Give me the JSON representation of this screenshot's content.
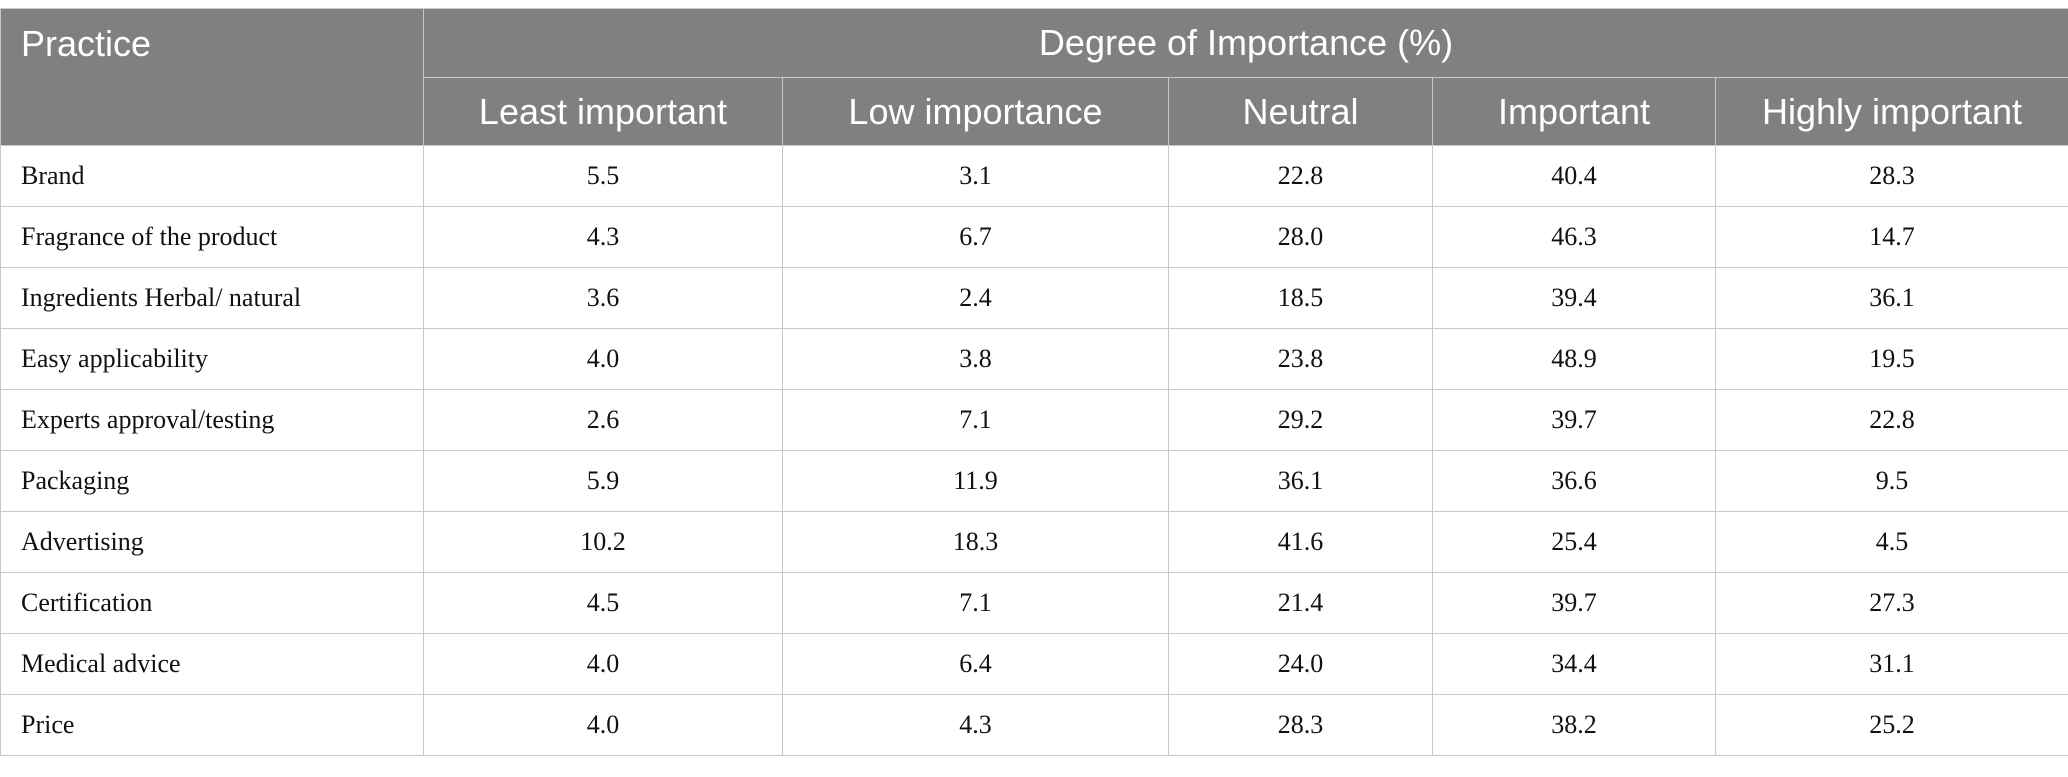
{
  "header": {
    "practice": "Practice",
    "group": "Degree of Importance (%)",
    "columns": [
      "Least important",
      "Low importance",
      "Neutral",
      "Important",
      "Highly important"
    ]
  },
  "rows": [
    {
      "label": "Brand",
      "values": [
        "5.5",
        "3.1",
        "22.8",
        "40.4",
        "28.3"
      ]
    },
    {
      "label": "Fragrance of the product",
      "values": [
        "4.3",
        "6.7",
        "28.0",
        "46.3",
        "14.7"
      ]
    },
    {
      "label": "Ingredients Herbal/ natural",
      "values": [
        "3.6",
        "2.4",
        "18.5",
        "39.4",
        "36.1"
      ]
    },
    {
      "label": "Easy applicability",
      "values": [
        "4.0",
        "3.8",
        "23.8",
        "48.9",
        "19.5"
      ]
    },
    {
      "label": "Experts approval/testing",
      "values": [
        "2.6",
        "7.1",
        "29.2",
        "39.7",
        "22.8"
      ]
    },
    {
      "label": "Packaging",
      "values": [
        "5.9",
        "11.9",
        "36.1",
        "36.6",
        "9.5"
      ]
    },
    {
      "label": "Advertising",
      "values": [
        "10.2",
        "18.3",
        "41.6",
        "25.4",
        "4.5"
      ]
    },
    {
      "label": "Certification",
      "values": [
        "4.5",
        "7.1",
        "21.4",
        "39.7",
        "27.3"
      ]
    },
    {
      "label": "Medical advice",
      "values": [
        "4.0",
        "6.4",
        "24.0",
        "34.4",
        "31.1"
      ]
    },
    {
      "label": "Price",
      "values": [
        "4.0",
        "4.3",
        "28.3",
        "38.2",
        "25.2"
      ]
    }
  ]
}
